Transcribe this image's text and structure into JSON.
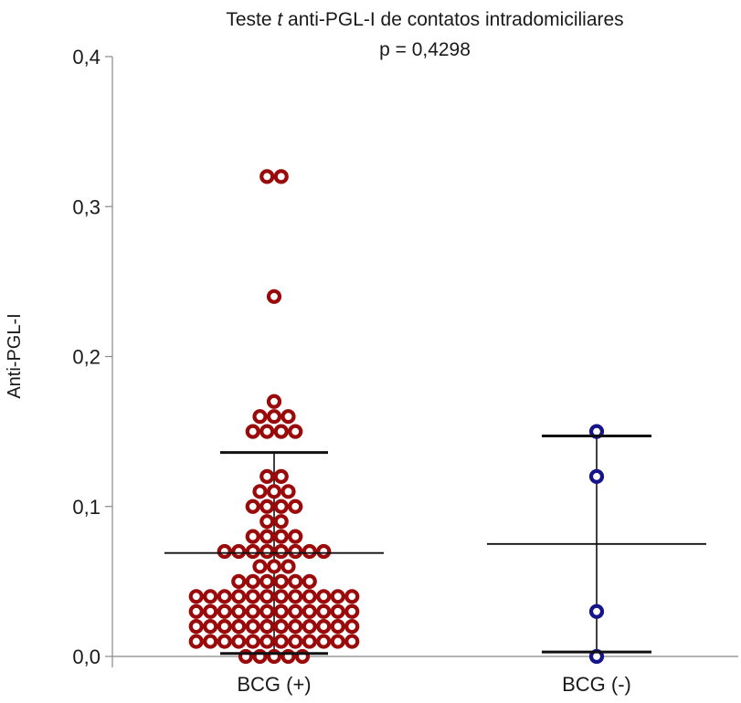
{
  "chart_data": {
    "type": "scatter",
    "title": "Teste t anti-PGL-I de contatos intradomiciliares",
    "title_parts": [
      "Teste ",
      "t",
      " anti-PGL-I de contatos intradomiciliares"
    ],
    "subtitle": "p = 0,4298",
    "ylabel": "Anti-PGL-I",
    "xlabel": "",
    "ylim": [
      0,
      0.4
    ],
    "yticks": [
      0,
      0.1,
      0.2,
      0.3,
      0.4
    ],
    "ytick_labels": [
      "0,0",
      "0,1",
      "0,2",
      "0,3",
      "0,4"
    ],
    "categories": [
      "BCG (+)",
      "BCG (-)"
    ],
    "grid": false,
    "series": [
      {
        "category": "BCG (+)",
        "color": "#9b0a0a",
        "mean": 0.069,
        "sd_upper": 0.136,
        "sd_lower": 0.002,
        "values": [
          0.32,
          0.32,
          0.24,
          0.17,
          0.16,
          0.16,
          0.16,
          0.15,
          0.15,
          0.15,
          0.15,
          0.12,
          0.12,
          0.11,
          0.11,
          0.11,
          0.1,
          0.1,
          0.1,
          0.1,
          0.09,
          0.09,
          0.08,
          0.08,
          0.08,
          0.08,
          0.07,
          0.07,
          0.07,
          0.07,
          0.07,
          0.07,
          0.07,
          0.07,
          0.06,
          0.06,
          0.06,
          0.05,
          0.05,
          0.05,
          0.05,
          0.05,
          0.05,
          0.04,
          0.04,
          0.04,
          0.04,
          0.04,
          0.04,
          0.04,
          0.04,
          0.04,
          0.04,
          0.04,
          0.04,
          0.03,
          0.03,
          0.03,
          0.03,
          0.03,
          0.03,
          0.03,
          0.03,
          0.03,
          0.03,
          0.03,
          0.03,
          0.02,
          0.02,
          0.02,
          0.02,
          0.02,
          0.02,
          0.02,
          0.02,
          0.02,
          0.02,
          0.02,
          0.02,
          0.01,
          0.01,
          0.01,
          0.01,
          0.01,
          0.01,
          0.01,
          0.01,
          0.01,
          0.01,
          0.01,
          0.01,
          0.0,
          0.0,
          0.0,
          0.0,
          0.0
        ]
      },
      {
        "category": "BCG (-)",
        "color": "#14148c",
        "mean": 0.075,
        "sd_upper": 0.147,
        "sd_lower": 0.003,
        "values": [
          0.15,
          0.12,
          0.03,
          0.0
        ]
      }
    ]
  }
}
